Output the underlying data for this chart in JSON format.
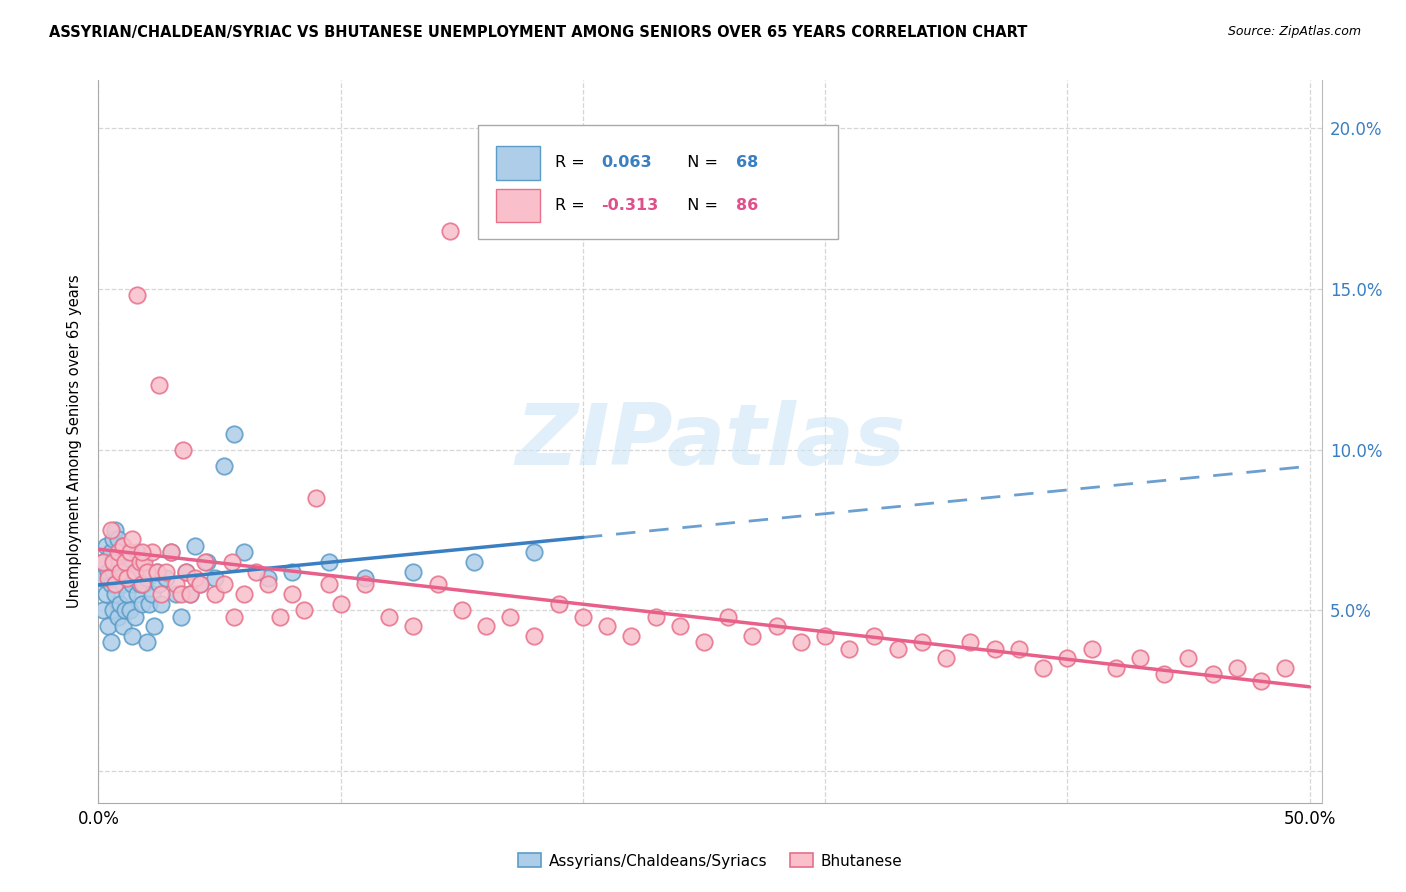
{
  "title": "ASSYRIAN/CHALDEAN/SYRIAC VS BHUTANESE UNEMPLOYMENT AMONG SENIORS OVER 65 YEARS CORRELATION CHART",
  "source": "Source: ZipAtlas.com",
  "ylabel": "Unemployment Among Seniors over 65 years",
  "xlim": [
    0.0,
    0.505
  ],
  "ylim": [
    -0.01,
    0.215
  ],
  "yticks": [
    0.0,
    0.05,
    0.1,
    0.15,
    0.2
  ],
  "ytick_labels": [
    "",
    "5.0%",
    "10.0%",
    "15.0%",
    "20.0%"
  ],
  "xtick_positions": [
    0.0,
    0.1,
    0.2,
    0.3,
    0.4,
    0.5
  ],
  "xtick_labels": [
    "0.0%",
    "",
    "",
    "",
    "",
    "50.0%"
  ],
  "blue_face": "#aecde8",
  "blue_edge": "#5b9cc9",
  "pink_face": "#f9c0cc",
  "pink_edge": "#e8708a",
  "blue_line": "#3a7fc1",
  "pink_line": "#e8608a",
  "grid_color": "#cccccc",
  "watermark": "ZIPatlas",
  "watermark_color": "#cce5f5",
  "label1": "Assyrians/Chaldeans/Syriacs",
  "label2": "Bhutanese",
  "legend_R_blue": "0.063",
  "legend_N_blue": "68",
  "legend_R_pink": "-0.313",
  "legend_N_pink": "86",
  "blue_scatter_x": [
    0.001,
    0.002,
    0.002,
    0.003,
    0.003,
    0.004,
    0.004,
    0.005,
    0.005,
    0.005,
    0.006,
    0.006,
    0.006,
    0.007,
    0.007,
    0.007,
    0.008,
    0.008,
    0.008,
    0.009,
    0.009,
    0.01,
    0.01,
    0.01,
    0.011,
    0.011,
    0.012,
    0.012,
    0.013,
    0.013,
    0.014,
    0.014,
    0.015,
    0.015,
    0.016,
    0.016,
    0.017,
    0.018,
    0.018,
    0.019,
    0.02,
    0.02,
    0.021,
    0.022,
    0.023,
    0.024,
    0.025,
    0.026,
    0.028,
    0.03,
    0.032,
    0.034,
    0.036,
    0.038,
    0.04,
    0.042,
    0.045,
    0.048,
    0.052,
    0.056,
    0.06,
    0.07,
    0.08,
    0.095,
    0.11,
    0.13,
    0.155,
    0.18
  ],
  "blue_scatter_y": [
    0.06,
    0.05,
    0.065,
    0.055,
    0.07,
    0.045,
    0.062,
    0.04,
    0.058,
    0.068,
    0.05,
    0.062,
    0.072,
    0.055,
    0.065,
    0.075,
    0.048,
    0.06,
    0.072,
    0.052,
    0.068,
    0.045,
    0.058,
    0.07,
    0.05,
    0.065,
    0.055,
    0.068,
    0.05,
    0.063,
    0.042,
    0.058,
    0.048,
    0.062,
    0.055,
    0.068,
    0.058,
    0.052,
    0.065,
    0.058,
    0.04,
    0.06,
    0.052,
    0.055,
    0.045,
    0.062,
    0.058,
    0.052,
    0.06,
    0.068,
    0.055,
    0.048,
    0.062,
    0.055,
    0.07,
    0.058,
    0.065,
    0.06,
    0.095,
    0.105,
    0.068,
    0.06,
    0.062,
    0.065,
    0.06,
    0.062,
    0.065,
    0.068
  ],
  "pink_scatter_x": [
    0.002,
    0.004,
    0.005,
    0.006,
    0.007,
    0.008,
    0.009,
    0.01,
    0.011,
    0.012,
    0.013,
    0.014,
    0.015,
    0.016,
    0.017,
    0.018,
    0.019,
    0.02,
    0.022,
    0.024,
    0.026,
    0.028,
    0.03,
    0.032,
    0.034,
    0.036,
    0.038,
    0.04,
    0.042,
    0.044,
    0.048,
    0.052,
    0.056,
    0.06,
    0.065,
    0.07,
    0.075,
    0.08,
    0.085,
    0.09,
    0.1,
    0.11,
    0.12,
    0.13,
    0.14,
    0.15,
    0.16,
    0.17,
    0.18,
    0.19,
    0.2,
    0.21,
    0.22,
    0.23,
    0.24,
    0.25,
    0.26,
    0.27,
    0.28,
    0.29,
    0.3,
    0.31,
    0.32,
    0.33,
    0.34,
    0.35,
    0.36,
    0.37,
    0.38,
    0.39,
    0.4,
    0.41,
    0.42,
    0.43,
    0.44,
    0.45,
    0.46,
    0.47,
    0.48,
    0.49,
    0.018,
    0.025,
    0.035,
    0.055,
    0.095,
    0.145
  ],
  "pink_scatter_y": [
    0.065,
    0.06,
    0.075,
    0.065,
    0.058,
    0.068,
    0.062,
    0.07,
    0.065,
    0.06,
    0.068,
    0.072,
    0.062,
    0.148,
    0.065,
    0.058,
    0.065,
    0.062,
    0.068,
    0.062,
    0.055,
    0.062,
    0.068,
    0.058,
    0.055,
    0.062,
    0.055,
    0.06,
    0.058,
    0.065,
    0.055,
    0.058,
    0.048,
    0.055,
    0.062,
    0.058,
    0.048,
    0.055,
    0.05,
    0.085,
    0.052,
    0.058,
    0.048,
    0.045,
    0.058,
    0.05,
    0.045,
    0.048,
    0.042,
    0.052,
    0.048,
    0.045,
    0.042,
    0.048,
    0.045,
    0.04,
    0.048,
    0.042,
    0.045,
    0.04,
    0.042,
    0.038,
    0.042,
    0.038,
    0.04,
    0.035,
    0.04,
    0.038,
    0.038,
    0.032,
    0.035,
    0.038,
    0.032,
    0.035,
    0.03,
    0.035,
    0.03,
    0.032,
    0.028,
    0.032,
    0.068,
    0.12,
    0.1,
    0.065,
    0.058,
    0.168
  ],
  "blue_trend_start_x": 0.0,
  "blue_trend_end_solid_x": 0.2,
  "blue_trend_end_dash_x": 0.5,
  "pink_trend_start_x": 0.0,
  "pink_trend_end_x": 0.5
}
